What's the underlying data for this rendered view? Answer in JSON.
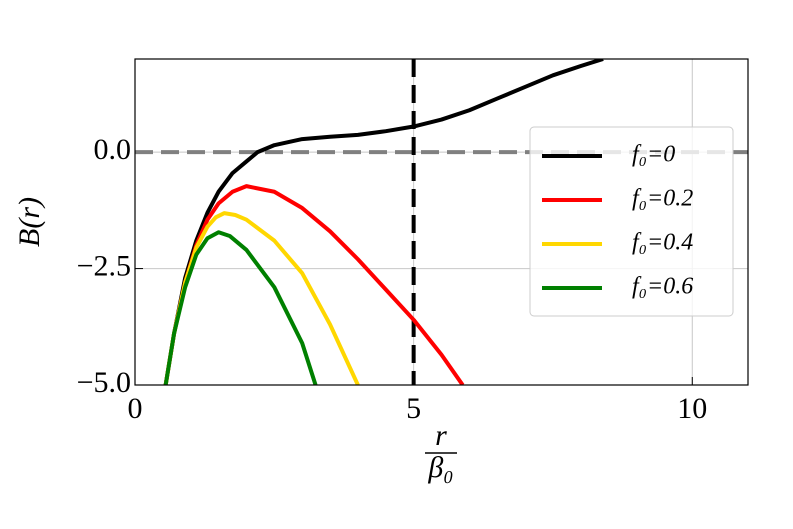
{
  "chart_data": {
    "type": "line",
    "ylabel": "B(r)",
    "xlabel": {
      "numerator": "r",
      "denominator": "β₀"
    },
    "xlim": [
      0,
      11
    ],
    "ylim": [
      -5,
      2
    ],
    "xticks": [
      0,
      5,
      10
    ],
    "yticks": [
      {
        "value": 0,
        "label": "0.0"
      },
      {
        "value": -2.5,
        "label": "−2.5"
      },
      {
        "value": -5,
        "label": "−5.0"
      }
    ],
    "grid": true,
    "vline": {
      "x": 5,
      "color": "#000000"
    },
    "hline": {
      "y": 0,
      "color": "#808080"
    },
    "legend": "right",
    "series": [
      {
        "name": "f₀=0",
        "color": "#000000",
        "x": [
          0.55,
          0.7,
          0.9,
          1.1,
          1.3,
          1.5,
          1.75,
          2.0,
          2.2,
          2.5,
          3,
          3.5,
          4,
          4.5,
          5,
          5.5,
          6,
          6.5,
          7,
          7.5,
          8,
          8.4
        ],
        "values": [
          -5,
          -3.9,
          -2.7,
          -1.9,
          -1.3,
          -0.85,
          -0.45,
          -0.2,
          0,
          0.15,
          0.28,
          0.33,
          0.37,
          0.45,
          0.55,
          0.7,
          0.9,
          1.15,
          1.4,
          1.65,
          1.85,
          2.0
        ]
      },
      {
        "name": "f₀=0.2",
        "color": "#ff0000",
        "x": [
          0.55,
          0.7,
          0.9,
          1.1,
          1.3,
          1.5,
          1.75,
          2.0,
          2.5,
          3,
          3.5,
          4,
          4.5,
          5,
          5.5,
          5.88
        ],
        "values": [
          -5,
          -3.9,
          -2.8,
          -2.0,
          -1.45,
          -1.1,
          -0.85,
          -0.73,
          -0.85,
          -1.2,
          -1.7,
          -2.3,
          -2.95,
          -3.6,
          -4.35,
          -5
        ]
      },
      {
        "name": "f₀=0.4",
        "color": "#ffd700",
        "x": [
          0.55,
          0.7,
          0.9,
          1.1,
          1.3,
          1.45,
          1.6,
          1.8,
          2.0,
          2.5,
          3,
          3.5,
          4.0
        ],
        "values": [
          -5,
          -3.9,
          -2.8,
          -2.05,
          -1.6,
          -1.4,
          -1.31,
          -1.35,
          -1.45,
          -1.9,
          -2.6,
          -3.7,
          -5
        ]
      },
      {
        "name": "f₀=0.6",
        "color": "#008000",
        "x": [
          0.55,
          0.7,
          0.9,
          1.1,
          1.3,
          1.5,
          1.7,
          2.0,
          2.5,
          3,
          3.24
        ],
        "values": [
          -5,
          -3.9,
          -2.9,
          -2.2,
          -1.85,
          -1.72,
          -1.8,
          -2.1,
          -2.9,
          -4.1,
          -5
        ]
      }
    ]
  }
}
